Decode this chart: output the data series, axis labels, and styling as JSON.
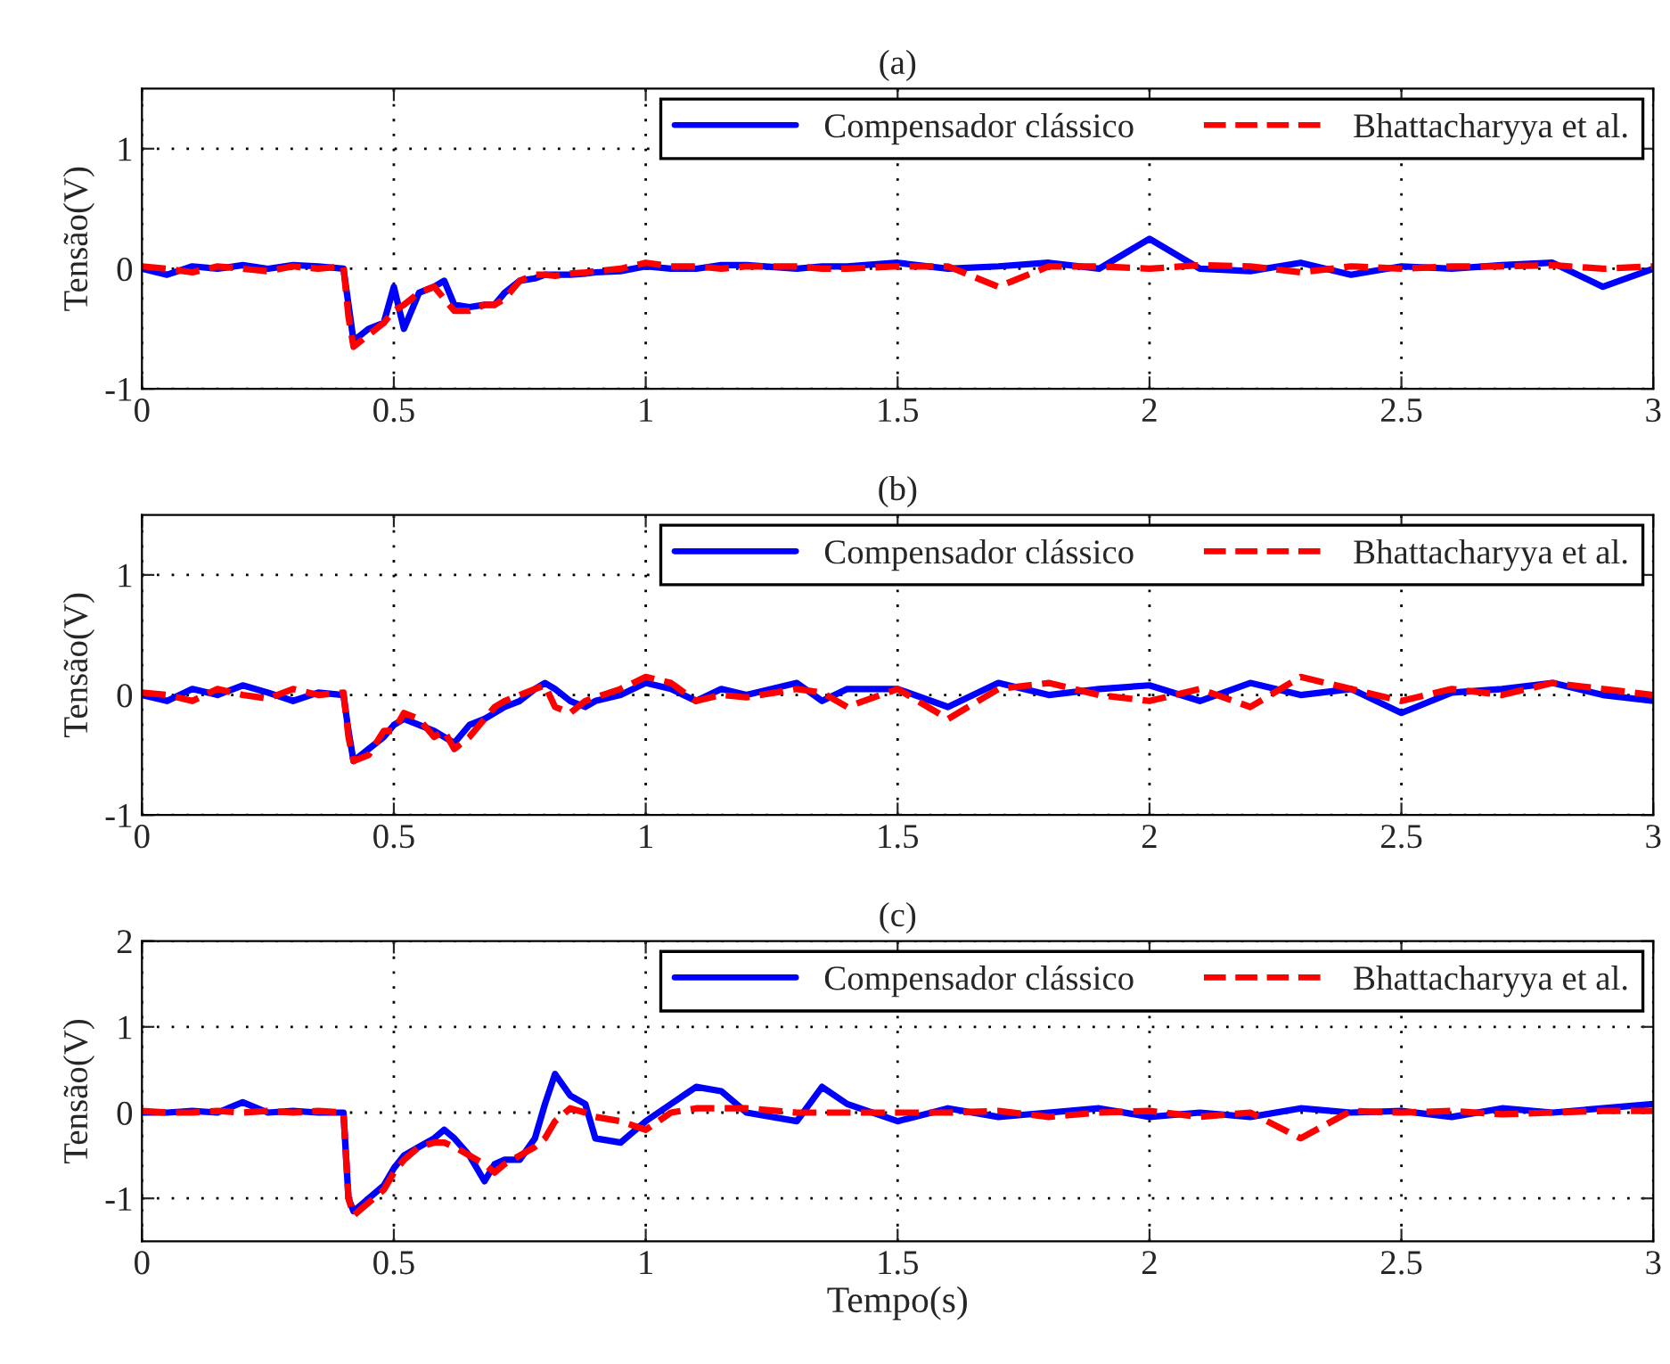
{
  "chart_data": [
    {
      "type": "line",
      "title": "(a)",
      "ylabel": "Tensão(V)",
      "xlim": [
        0,
        3
      ],
      "ylim": [
        -1,
        1.5
      ],
      "xticks": [
        0,
        0.5,
        1,
        1.5,
        2,
        2.5,
        3
      ],
      "yticks": [
        -1,
        0,
        1
      ],
      "grid": true,
      "legend": "top right",
      "x": [
        0,
        0.05,
        0.1,
        0.15,
        0.2,
        0.25,
        0.3,
        0.35,
        0.4,
        0.41,
        0.42,
        0.45,
        0.48,
        0.5,
        0.52,
        0.55,
        0.58,
        0.6,
        0.62,
        0.65,
        0.68,
        0.7,
        0.72,
        0.75,
        0.78,
        0.8,
        0.82,
        0.85,
        0.88,
        0.9,
        0.95,
        1.0,
        1.05,
        1.1,
        1.15,
        1.2,
        1.3,
        1.35,
        1.4,
        1.5,
        1.6,
        1.7,
        1.8,
        1.9,
        2.0,
        2.1,
        2.2,
        2.3,
        2.4,
        2.5,
        2.6,
        2.7,
        2.8,
        2.9,
        3.0
      ],
      "series": [
        {
          "name": "Compensador clássico",
          "color": "#0000ff",
          "line_style": "solid",
          "values": [
            0,
            -0.05,
            0.02,
            0,
            0.03,
            0,
            0.03,
            0.02,
            0,
            -0.3,
            -0.6,
            -0.5,
            -0.45,
            -0.15,
            -0.5,
            -0.2,
            -0.15,
            -0.1,
            -0.3,
            -0.32,
            -0.3,
            -0.3,
            -0.2,
            -0.1,
            -0.08,
            -0.05,
            -0.05,
            -0.05,
            -0.04,
            -0.03,
            -0.02,
            0.02,
            0,
            0,
            0.03,
            0.03,
            0,
            0.02,
            0.02,
            0.05,
            0,
            0.02,
            0.05,
            0,
            0.25,
            0,
            -0.02,
            0.05,
            -0.05,
            0.02,
            0,
            0.03,
            0.05,
            -0.15,
            0
          ]
        },
        {
          "name": "Bhattacharyya et al.",
          "color": "#ff0000",
          "line_style": "dashed",
          "values": [
            0.02,
            0,
            -0.03,
            0.02,
            0,
            -0.02,
            0.02,
            0,
            0.02,
            -0.4,
            -0.65,
            -0.55,
            -0.45,
            -0.35,
            -0.3,
            -0.2,
            -0.15,
            -0.25,
            -0.35,
            -0.35,
            -0.3,
            -0.3,
            -0.25,
            -0.1,
            -0.05,
            -0.05,
            -0.06,
            -0.04,
            -0.03,
            -0.02,
            0,
            0.05,
            0.02,
            0.02,
            0,
            0.02,
            0.02,
            0,
            0,
            0.02,
            0.02,
            -0.15,
            0.02,
            0.02,
            0,
            0.03,
            0.02,
            -0.03,
            0.02,
            0,
            0.02,
            0.02,
            0.03,
            0,
            0.02
          ]
        }
      ]
    },
    {
      "type": "line",
      "title": "(b)",
      "ylabel": "Tensão(V)",
      "xlim": [
        0,
        3
      ],
      "ylim": [
        -1,
        1.5
      ],
      "xticks": [
        0,
        0.5,
        1,
        1.5,
        2,
        2.5,
        3
      ],
      "yticks": [
        -1,
        0,
        1
      ],
      "grid": true,
      "legend": "top right",
      "x": [
        0,
        0.05,
        0.1,
        0.15,
        0.2,
        0.25,
        0.3,
        0.35,
        0.4,
        0.41,
        0.42,
        0.45,
        0.48,
        0.5,
        0.52,
        0.55,
        0.58,
        0.6,
        0.62,
        0.65,
        0.68,
        0.7,
        0.72,
        0.75,
        0.78,
        0.8,
        0.82,
        0.85,
        0.88,
        0.9,
        0.95,
        1.0,
        1.05,
        1.1,
        1.15,
        1.2,
        1.3,
        1.35,
        1.4,
        1.5,
        1.6,
        1.7,
        1.8,
        1.9,
        2.0,
        2.1,
        2.2,
        2.3,
        2.4,
        2.5,
        2.6,
        2.7,
        2.8,
        2.9,
        3.0
      ],
      "series": [
        {
          "name": "Compensador clássico",
          "color": "#0000ff",
          "line_style": "solid",
          "values": [
            0,
            -0.05,
            0.05,
            0,
            0.08,
            0.02,
            -0.05,
            0.02,
            0,
            -0.3,
            -0.55,
            -0.45,
            -0.35,
            -0.25,
            -0.2,
            -0.25,
            -0.3,
            -0.35,
            -0.4,
            -0.25,
            -0.2,
            -0.15,
            -0.1,
            -0.05,
            0.05,
            0.1,
            0.05,
            -0.05,
            -0.1,
            -0.05,
            0,
            0.1,
            0.05,
            -0.05,
            0.05,
            0,
            0.1,
            -0.05,
            0.05,
            0.05,
            -0.1,
            0.1,
            0,
            0.05,
            0.08,
            -0.05,
            0.1,
            0,
            0.05,
            -0.15,
            0.02,
            0.05,
            0.1,
            0,
            -0.05
          ]
        },
        {
          "name": "Bhattacharyya et al.",
          "color": "#ff0000",
          "line_style": "dashed",
          "values": [
            0.02,
            0,
            -0.05,
            0.05,
            0,
            -0.03,
            0.05,
            0,
            0.02,
            -0.35,
            -0.55,
            -0.5,
            -0.3,
            -0.3,
            -0.15,
            -0.2,
            -0.35,
            -0.3,
            -0.45,
            -0.35,
            -0.2,
            -0.1,
            -0.05,
            0,
            0.05,
            0.08,
            -0.1,
            -0.15,
            -0.05,
            -0.02,
            0.05,
            0.15,
            0.1,
            -0.05,
            0,
            -0.02,
            0.05,
            0.02,
            -0.1,
            0.05,
            -0.2,
            0.05,
            0.1,
            0,
            -0.05,
            0.05,
            -0.1,
            0.15,
            0.05,
            -0.05,
            0.05,
            0,
            0.1,
            0.05,
            0
          ]
        }
      ]
    },
    {
      "type": "line",
      "title": "(c)",
      "ylabel": "Tensão(V)",
      "xlabel": "Tempo(s)",
      "xlim": [
        0,
        3
      ],
      "ylim": [
        -1.5,
        2
      ],
      "xticks": [
        0,
        0.5,
        1,
        1.5,
        2,
        2.5,
        3
      ],
      "yticks": [
        -1,
        0,
        1,
        2
      ],
      "grid": true,
      "legend": "top right",
      "x": [
        0,
        0.05,
        0.1,
        0.15,
        0.2,
        0.25,
        0.3,
        0.35,
        0.4,
        0.41,
        0.42,
        0.45,
        0.48,
        0.5,
        0.52,
        0.55,
        0.58,
        0.6,
        0.62,
        0.65,
        0.68,
        0.7,
        0.72,
        0.75,
        0.78,
        0.8,
        0.82,
        0.85,
        0.88,
        0.9,
        0.95,
        1.0,
        1.05,
        1.1,
        1.15,
        1.2,
        1.3,
        1.35,
        1.4,
        1.5,
        1.6,
        1.7,
        1.8,
        1.9,
        2.0,
        2.1,
        2.2,
        2.3,
        2.4,
        2.5,
        2.6,
        2.7,
        2.8,
        2.9,
        3.0
      ],
      "series": [
        {
          "name": "Compensador clássico",
          "color": "#0000ff",
          "line_style": "solid",
          "values": [
            0,
            0,
            0.02,
            0,
            0.12,
            0,
            0.02,
            0,
            0,
            -1.0,
            -1.15,
            -1.0,
            -0.85,
            -0.65,
            -0.5,
            -0.4,
            -0.3,
            -0.2,
            -0.3,
            -0.5,
            -0.8,
            -0.6,
            -0.55,
            -0.55,
            -0.3,
            0.1,
            0.45,
            0.2,
            0.1,
            -0.3,
            -0.35,
            -0.1,
            0.1,
            0.3,
            0.25,
            0,
            -0.1,
            0.3,
            0.1,
            -0.1,
            0.05,
            -0.05,
            0,
            0.05,
            -0.05,
            0,
            -0.05,
            0.05,
            0,
            0.02,
            -0.05,
            0.05,
            0,
            0.05,
            0.1
          ]
        },
        {
          "name": "Bhattacharyya et al.",
          "color": "#ff0000",
          "line_style": "dashed",
          "values": [
            0.02,
            0,
            0,
            0.02,
            0,
            0.02,
            0,
            0.02,
            0,
            -1.0,
            -1.2,
            -1.05,
            -0.9,
            -0.7,
            -0.55,
            -0.4,
            -0.35,
            -0.35,
            -0.4,
            -0.5,
            -0.6,
            -0.7,
            -0.6,
            -0.5,
            -0.4,
            -0.3,
            -0.1,
            0.05,
            0,
            -0.05,
            -0.1,
            -0.2,
            0,
            0.05,
            0.05,
            0.05,
            0,
            0,
            0,
            0,
            0,
            0.02,
            -0.05,
            0,
            0.02,
            -0.05,
            0,
            -0.3,
            0.02,
            0,
            0.02,
            -0.02,
            0,
            0.02,
            0.02
          ]
        }
      ]
    }
  ]
}
